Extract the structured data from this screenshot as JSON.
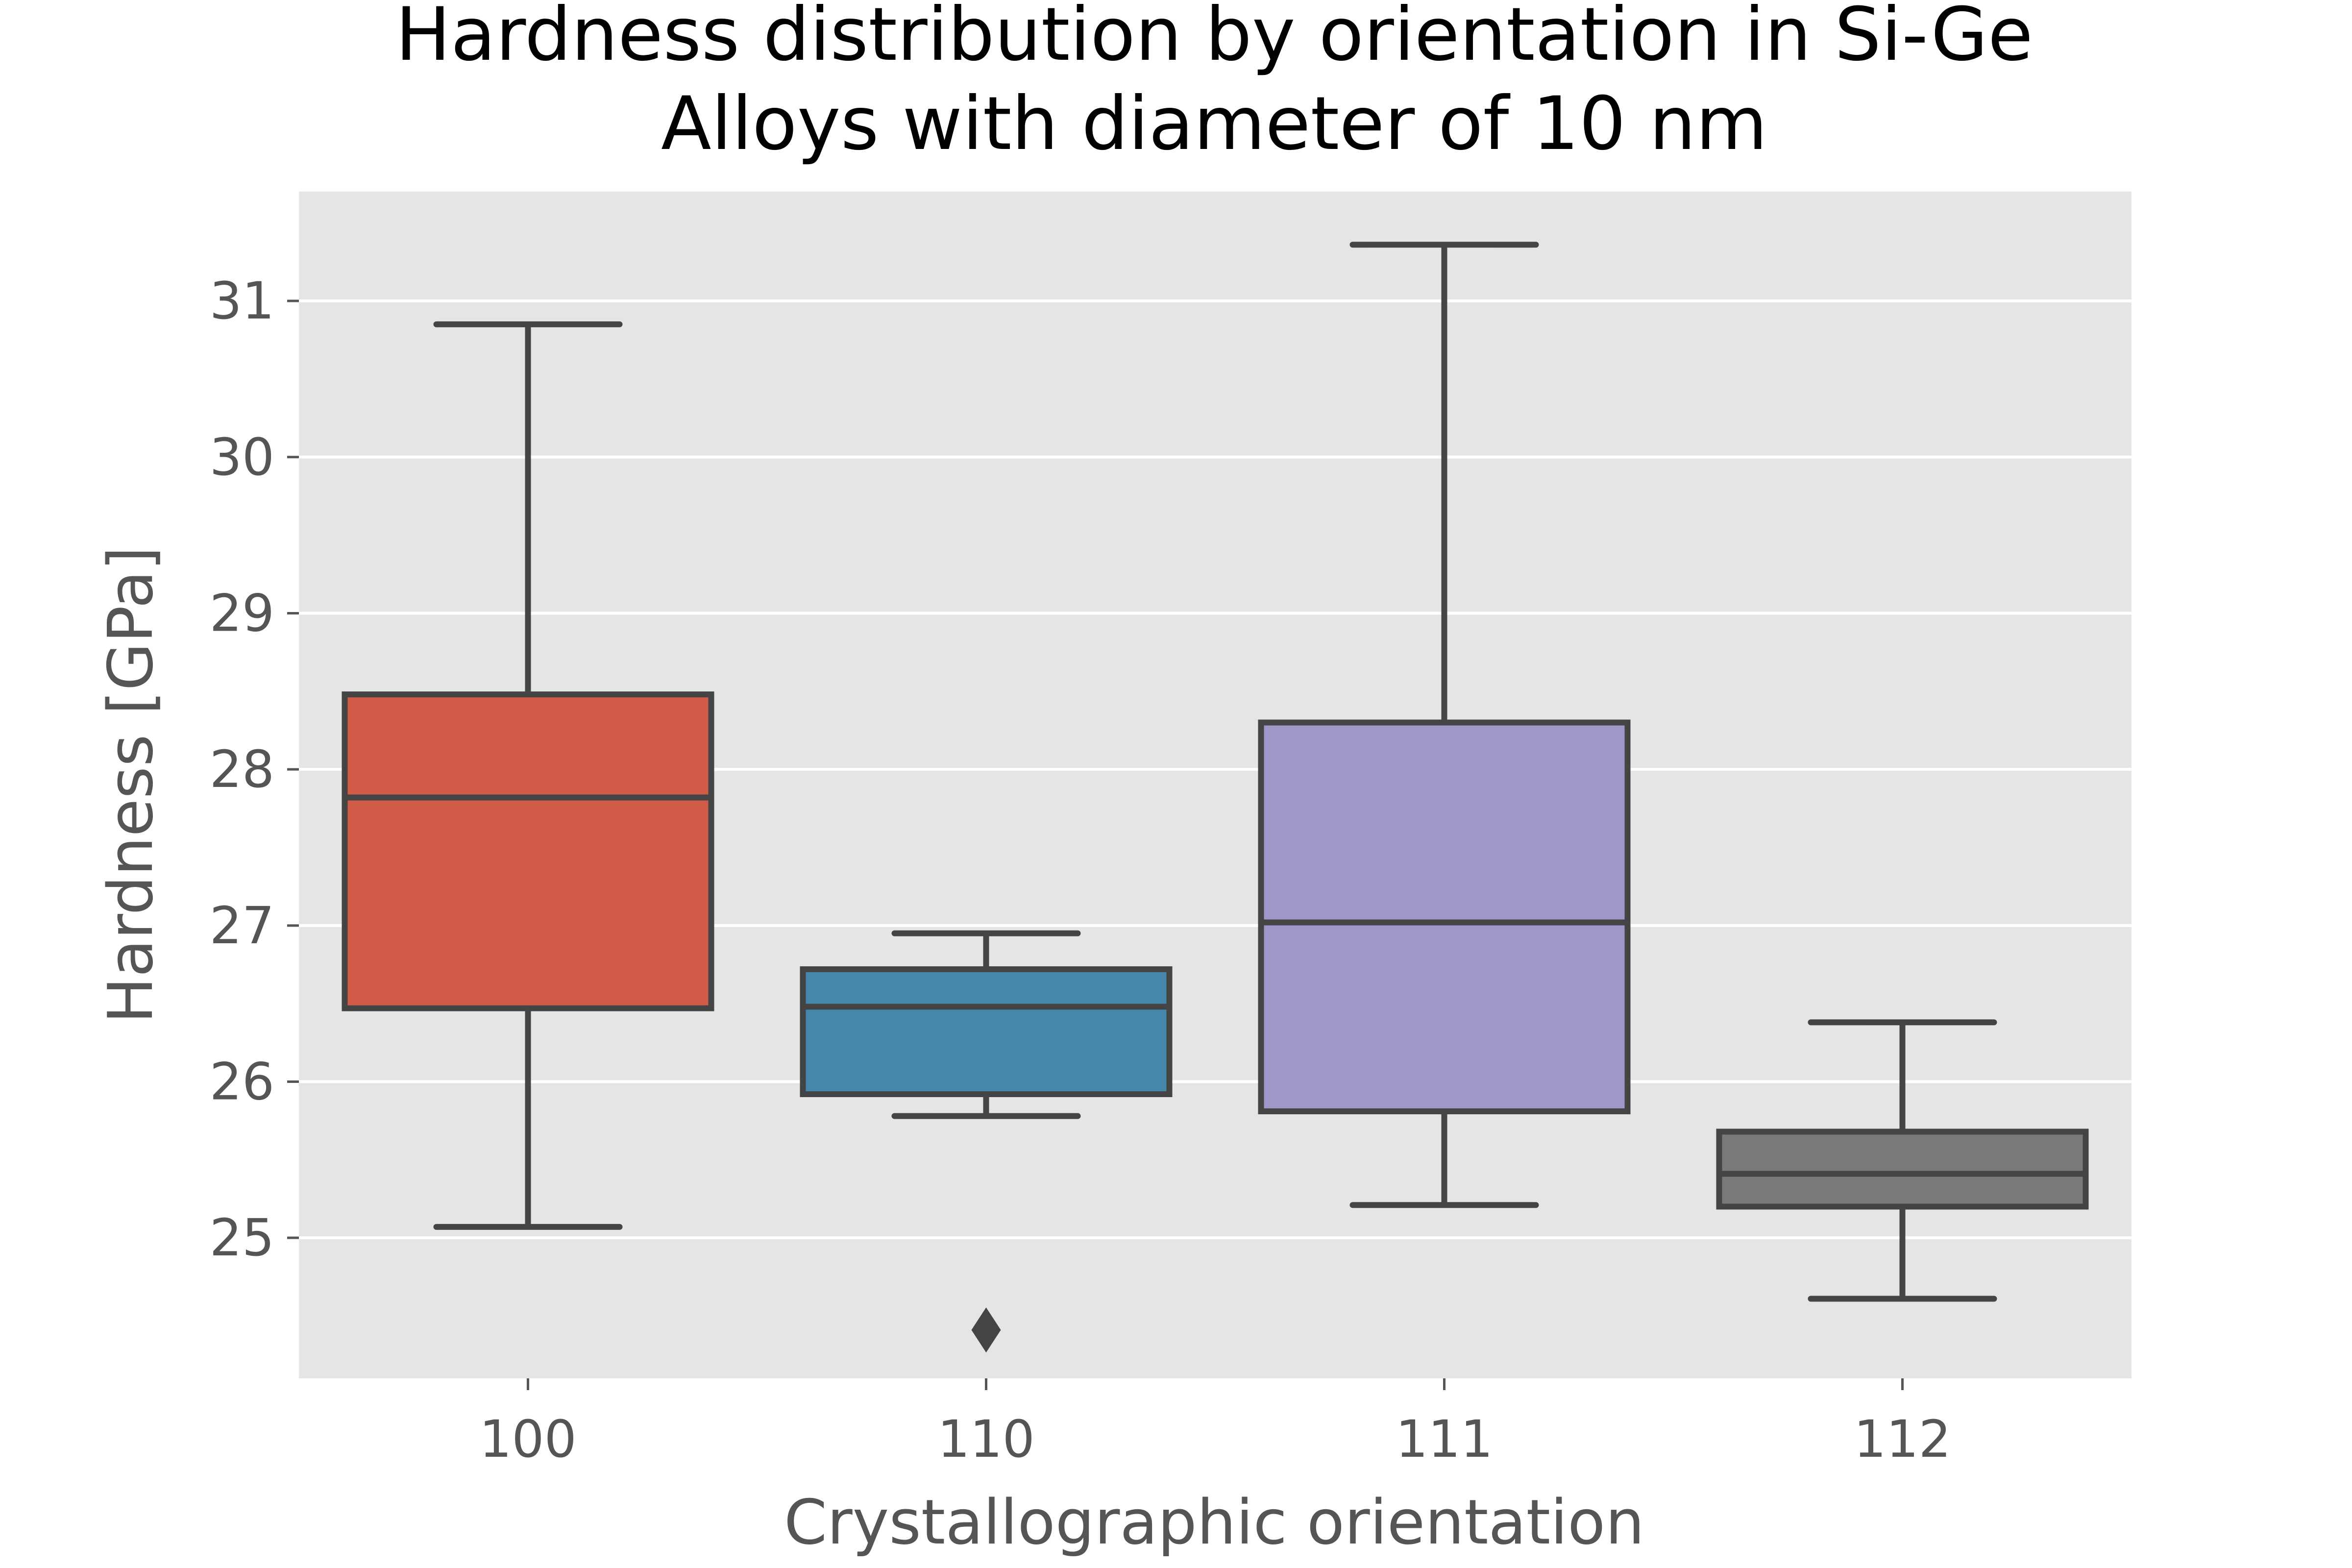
{
  "chart_data": {
    "type": "box",
    "title": [
      "Hardness distribution by orientation in Si-Ge",
      "Alloys with diameter of 10 nm"
    ],
    "xlabel": "Crystallographic orientation",
    "ylabel": "Hardness [GPa]",
    "ylim": [
      24.1,
      31.7
    ],
    "yticks": [
      25,
      26,
      27,
      28,
      29,
      30,
      31
    ],
    "grid": true,
    "background": "#e5e5e5",
    "categories": [
      "100",
      "110",
      "111",
      "112"
    ],
    "boxes": [
      {
        "category": "100",
        "whisker_low": 25.07,
        "q1": 26.47,
        "median": 27.82,
        "q3": 28.48,
        "whisker_high": 30.85,
        "outliers": [],
        "color": "#cf5b48"
      },
      {
        "category": "110",
        "whisker_low": 25.78,
        "q1": 25.92,
        "median": 26.48,
        "q3": 26.72,
        "whisker_high": 26.95,
        "outliers": [
          24.41
        ],
        "color": "#4586ad"
      },
      {
        "category": "111",
        "whisker_low": 25.21,
        "q1": 25.81,
        "median": 27.02,
        "q3": 28.3,
        "whisker_high": 31.36,
        "outliers": [],
        "color": "#9e98c9"
      },
      {
        "category": "112",
        "whisker_low": 24.61,
        "q1": 25.2,
        "median": 25.41,
        "q3": 25.68,
        "whisker_high": 26.38,
        "outliers": [],
        "color": "#7a7a7a"
      }
    ],
    "line_color": "#444444"
  }
}
